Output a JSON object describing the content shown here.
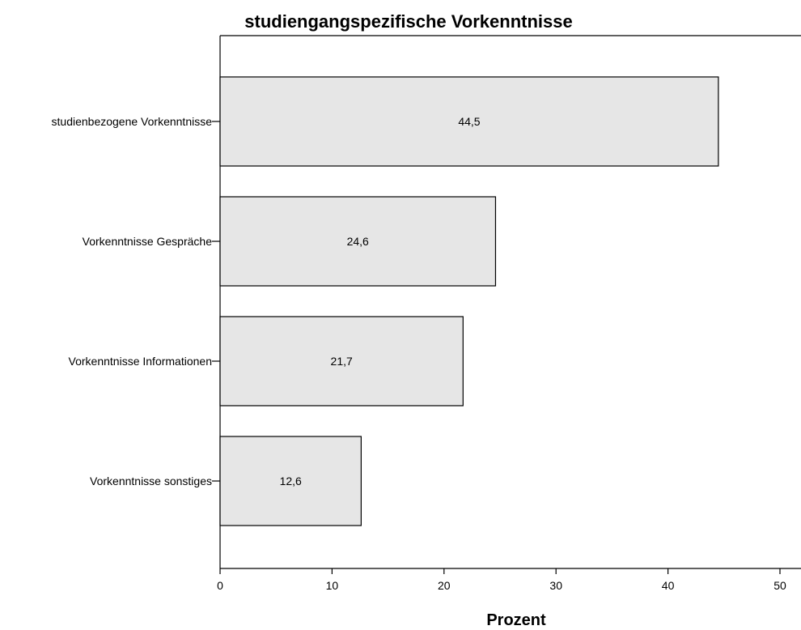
{
  "chart_data": {
    "type": "bar",
    "orientation": "horizontal",
    "title": "studiengangspezifische Vorkenntnisse",
    "xlabel": "Prozent",
    "ylabel": "",
    "categories": [
      "studienbezogene Vorkenntnisse",
      "Vorkenntnisse Gespräche",
      "Vorkenntnisse Informationen",
      "Vorkenntnisse sonstiges"
    ],
    "values": [
      44.5,
      24.6,
      21.7,
      12.6
    ],
    "value_labels": [
      "44,5",
      "24,6",
      "21,7",
      "12,6"
    ],
    "xlim": [
      0,
      50
    ],
    "xticks": [
      0,
      10,
      20,
      30,
      40,
      50
    ],
    "xtick_labels": [
      "0",
      "10",
      "20",
      "30",
      "40",
      "50"
    ],
    "grid": false,
    "bar_color": "#e6e6e6"
  }
}
